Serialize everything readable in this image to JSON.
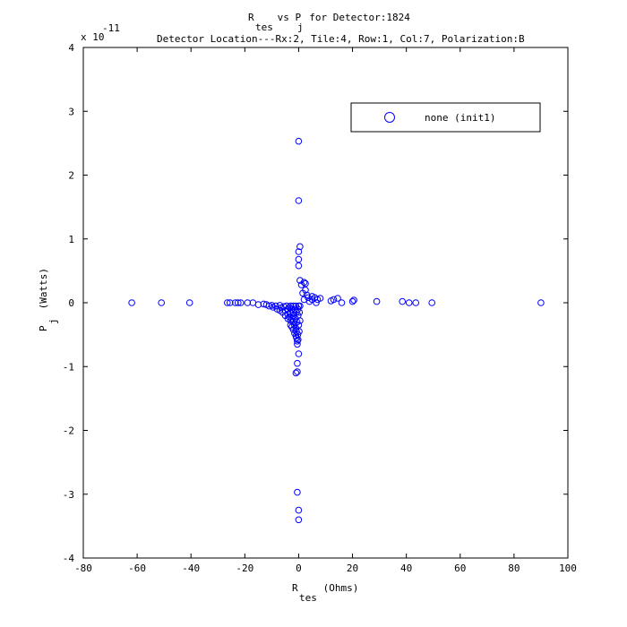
{
  "chart_data": {
    "type": "scatter",
    "title": {
      "line1_a": "R",
      "line1_sub_a": "tes",
      "line1_b": " vs P",
      "line1_sub_b": "j",
      "line1_c": "  for Detector:1824",
      "line2": "Detector Location---Rx:2, Tile:4, Row:1, Col:7, Polarization:B"
    },
    "xlabel": {
      "main": "R",
      "sub": "tes",
      "unit": " (Ohms)"
    },
    "ylabel": {
      "main": "P",
      "sub": "j",
      "unit": " (Watts)"
    },
    "y_exponent": {
      "base": "x 10",
      "power": "-11"
    },
    "xlim": [
      -80,
      100
    ],
    "ylim": [
      -4,
      4
    ],
    "x_ticks": [
      -80,
      -60,
      -40,
      -20,
      0,
      20,
      40,
      60,
      80,
      100
    ],
    "y_ticks": [
      -4,
      -3,
      -2,
      -1,
      0,
      1,
      2,
      3,
      4
    ],
    "grid": false,
    "legend_position": "top-right",
    "series": [
      {
        "name": "none (init1)",
        "color": "#0000ff",
        "marker": "circle",
        "points": [
          [
            -62,
            0
          ],
          [
            -51,
            0
          ],
          [
            -40.5,
            0
          ],
          [
            -26.5,
            0
          ],
          [
            -25.5,
            0
          ],
          [
            -23.5,
            0
          ],
          [
            -22.5,
            0
          ],
          [
            -21.5,
            0
          ],
          [
            -19,
            0
          ],
          [
            -17,
            0
          ],
          [
            -15,
            -0.03
          ],
          [
            -13,
            -0.02
          ],
          [
            -12,
            -0.03
          ],
          [
            -11,
            -0.05
          ],
          [
            -10,
            -0.04
          ],
          [
            -9.5,
            -0.07
          ],
          [
            -8.5,
            -0.05
          ],
          [
            -8,
            -0.1
          ],
          [
            -7,
            -0.04
          ],
          [
            -7,
            -0.12
          ],
          [
            -6.5,
            -0.08
          ],
          [
            -6,
            -0.15
          ],
          [
            -5.5,
            -0.06
          ],
          [
            -5,
            -0.12
          ],
          [
            -5,
            -0.2
          ],
          [
            -4.5,
            -0.05
          ],
          [
            -4,
            -0.1
          ],
          [
            -4,
            -0.18
          ],
          [
            -4,
            -0.25
          ],
          [
            -3.5,
            -0.07
          ],
          [
            -3.5,
            -0.22
          ],
          [
            -3,
            -0.05
          ],
          [
            -3,
            -0.15
          ],
          [
            -3,
            -0.28
          ],
          [
            -3,
            -0.35
          ],
          [
            -2.5,
            -0.1
          ],
          [
            -2.5,
            -0.25
          ],
          [
            -2.5,
            -0.38
          ],
          [
            -2,
            -0.05
          ],
          [
            -2,
            -0.15
          ],
          [
            -2,
            -0.3
          ],
          [
            -2,
            -0.42
          ],
          [
            -1.8,
            -0.2
          ],
          [
            -1.5,
            -0.1
          ],
          [
            -1.5,
            -0.35
          ],
          [
            -1.5,
            -0.48
          ],
          [
            -1.2,
            -0.25
          ],
          [
            -1,
            -0.05
          ],
          [
            -1,
            -0.4
          ],
          [
            -1,
            -0.52
          ],
          [
            -0.8,
            -0.15
          ],
          [
            -0.8,
            -0.45
          ],
          [
            -0.8,
            -0.55
          ],
          [
            -0.6,
            -0.3
          ],
          [
            -0.5,
            -0.6
          ],
          [
            -0.5,
            -0.65
          ],
          [
            -0.3,
            -0.1
          ],
          [
            -0.3,
            -0.5
          ],
          [
            -0.2,
            -0.58
          ],
          [
            -0.2,
            -0.2
          ],
          [
            0,
            -0.05
          ],
          [
            0,
            -0.35
          ],
          [
            0.2,
            -0.45
          ],
          [
            0.3,
            -0.15
          ],
          [
            0.5,
            -0.28
          ],
          [
            0.5,
            -0.05
          ],
          [
            0,
            -0.8
          ],
          [
            -0.5,
            -0.95
          ],
          [
            -0.5,
            -1.08
          ],
          [
            -1,
            -1.1
          ],
          [
            -0.5,
            -2.97
          ],
          [
            0,
            -3.25
          ],
          [
            0,
            -3.4
          ],
          [
            0,
            2.53
          ],
          [
            0,
            1.6
          ],
          [
            0.5,
            0.88
          ],
          [
            0,
            0.8
          ],
          [
            0,
            0.68
          ],
          [
            0,
            0.58
          ],
          [
            0.5,
            0.35
          ],
          [
            1,
            0.28
          ],
          [
            2,
            0.32
          ],
          [
            2.5,
            0.3
          ],
          [
            1.5,
            0.15
          ],
          [
            2.5,
            0.2
          ],
          [
            3,
            0.12
          ],
          [
            3.5,
            0.08
          ],
          [
            2,
            0.05
          ],
          [
            5,
            0.05
          ],
          [
            5,
            0.1
          ],
          [
            6,
            0.08
          ],
          [
            7,
            0.05
          ],
          [
            8,
            0.07
          ],
          [
            4,
            0.02
          ],
          [
            6.5,
            0
          ],
          [
            12,
            0.03
          ],
          [
            13,
            0.05
          ],
          [
            14.5,
            0.07
          ],
          [
            16,
            0
          ],
          [
            20,
            0.02
          ],
          [
            20.5,
            0.04
          ],
          [
            29,
            0.02
          ],
          [
            38.5,
            0.02
          ],
          [
            41,
            0
          ],
          [
            43.5,
            0
          ],
          [
            49.5,
            0
          ],
          [
            90,
            0
          ]
        ]
      }
    ]
  }
}
